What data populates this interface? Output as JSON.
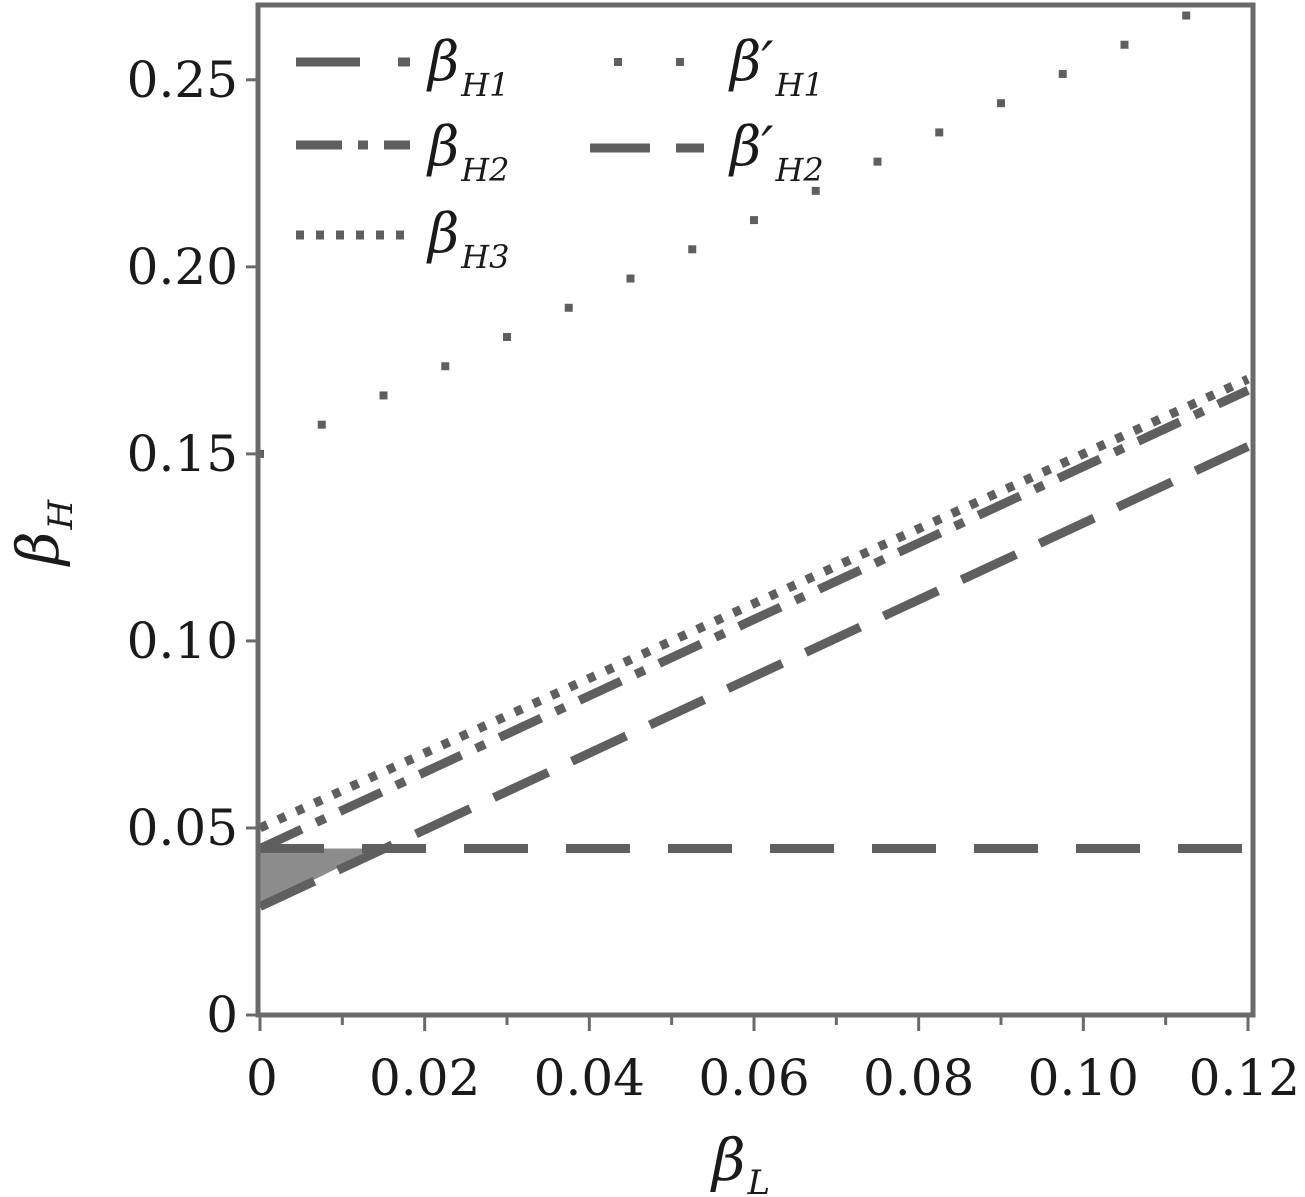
{
  "chart_data": {
    "type": "line",
    "title": "",
    "xlabel": {
      "main": "β",
      "sub": "L"
    },
    "ylabel": {
      "main": "β",
      "sub": "H"
    },
    "xlim": [
      0,
      0.12
    ],
    "ylim": [
      0,
      0.27
    ],
    "x_ticks": [
      {
        "value": 0,
        "label": "0"
      },
      {
        "value": 0.02,
        "label": "0.02"
      },
      {
        "value": 0.04,
        "label": "0.04"
      },
      {
        "value": 0.06,
        "label": "0.06"
      },
      {
        "value": 0.08,
        "label": "0.08"
      },
      {
        "value": 0.1,
        "label": "0.10"
      },
      {
        "value": 0.12,
        "label": "0.12"
      }
    ],
    "y_ticks": [
      {
        "value": 0,
        "label": "0"
      },
      {
        "value": 0.05,
        "label": "0.05"
      },
      {
        "value": 0.1,
        "label": "0.10"
      },
      {
        "value": 0.15,
        "label": "0.15"
      },
      {
        "value": 0.2,
        "label": "0.20"
      },
      {
        "value": 0.25,
        "label": "0.25"
      }
    ],
    "grid": false,
    "legend_position": "top-left",
    "series": [
      {
        "id": "bH1",
        "name": "β",
        "sub": "H1",
        "style": "dash",
        "x": [
          0,
          0.12
        ],
        "y": [
          0.0445,
          0.0445
        ]
      },
      {
        "id": "bH2",
        "name": "β",
        "sub": "H2",
        "style": "dashdot",
        "x": [
          0,
          0.12
        ],
        "y": [
          0.0445,
          0.167
        ]
      },
      {
        "id": "bH3",
        "name": "β",
        "sub": "H3",
        "style": "dot",
        "x": [
          0,
          0.12
        ],
        "y": [
          0.05,
          0.17
        ]
      },
      {
        "id": "bpH1",
        "name": "β′",
        "sub": "H1",
        "style": "sparse-dot",
        "x": [
          0,
          0.12
        ],
        "y": [
          0.15,
          0.275
        ]
      },
      {
        "id": "bpH2",
        "name": "β′",
        "sub": "H2",
        "style": "longdash",
        "x": [
          0,
          0.12
        ],
        "y": [
          0.029,
          0.152
        ]
      }
    ],
    "shaded_region": {
      "x": [
        0,
        0.0142,
        0
      ],
      "y": [
        0.0445,
        0.0445,
        0.029
      ]
    },
    "colors": {
      "line": "#5f5f5f",
      "frame": "#6a6a6a",
      "shade": "#8c8c8c",
      "text": "#1a1a1a"
    }
  }
}
